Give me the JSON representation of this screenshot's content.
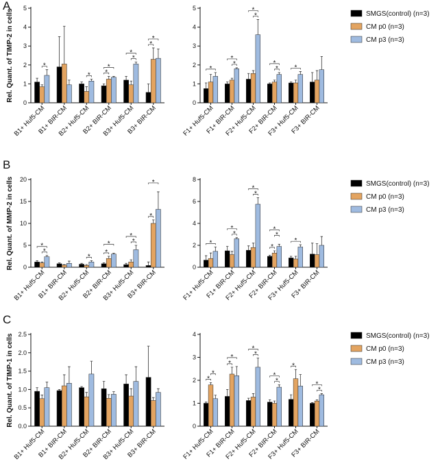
{
  "chart_data": [
    {
      "type": "bar",
      "panel_label": "A",
      "y_label": "Rel. Quant. of TIMP-2 in cells",
      "categories": [
        "B1+ Huf5-CM",
        "B1+ BIR-CM",
        "B2+ Huf5-CM",
        "B2+ BIR-CM",
        "B3+ Huf5-CM",
        "B3+ BIR-CM"
      ],
      "ylim": [
        0,
        5
      ],
      "yticks": [
        0,
        1,
        2,
        3,
        4,
        5
      ],
      "series": [
        {
          "color": "#000000",
          "values": [
            1.1,
            1.9,
            1.0,
            0.9,
            1.2,
            0.55
          ],
          "errors": [
            0.2,
            1.6,
            0.1,
            0.1,
            0.2,
            0.45
          ]
        },
        {
          "color": "#e3a461",
          "values": [
            0.85,
            2.05,
            0.6,
            1.25,
            0.95,
            2.3
          ],
          "errors": [
            0.1,
            2.0,
            0.25,
            0.15,
            0.2,
            0.6
          ]
        },
        {
          "color": "#9fbbe0",
          "values": [
            1.45,
            0.95,
            1.15,
            1.35,
            2.05,
            2.35
          ],
          "errors": [
            0.3,
            0.25,
            0.1,
            0.05,
            0.1,
            0.5
          ]
        }
      ],
      "significance": [
        {
          "label": "*",
          "category": 0,
          "pair": [
            1,
            2
          ]
        },
        {
          "label": "*",
          "category": 2,
          "pair": [
            1,
            2
          ]
        },
        {
          "label": "*",
          "category": 3,
          "pair": [
            0,
            1
          ]
        },
        {
          "label": "*",
          "category": 3,
          "pair": [
            0,
            2
          ]
        },
        {
          "label": "*",
          "category": 4,
          "pair": [
            1,
            2
          ]
        },
        {
          "label": "*",
          "category": 4,
          "pair": [
            0,
            2
          ]
        },
        {
          "label": "*",
          "category": 5,
          "pair": [
            0,
            1
          ]
        },
        {
          "label": "*",
          "category": 5,
          "pair": [
            0,
            2
          ]
        }
      ]
    },
    {
      "type": "bar",
      "categories": [
        "F1+ Huf5-CM",
        "F1+ BIR-CM",
        "F2+ Huf5-CM",
        "F2+ BIR-CM",
        "F3+ Huf5-CM",
        "F3+ BIR-CM"
      ],
      "ylim": [
        0,
        5
      ],
      "yticks": [
        0,
        1,
        2,
        3,
        4,
        5
      ],
      "series": [
        {
          "name": "SMGS(control) (n=3)",
          "color": "#000000",
          "values": [
            0.75,
            1.0,
            1.25,
            1.0,
            1.05,
            1.1
          ],
          "errors": [
            0.3,
            0.1,
            0.3,
            0.05,
            0.05,
            0.5
          ]
        },
        {
          "name": "CM p0 (n=3)",
          "color": "#e3a461",
          "values": [
            1.1,
            1.2,
            1.55,
            1.1,
            1.05,
            1.2
          ],
          "errors": [
            0.4,
            0.1,
            0.15,
            0.1,
            0.15,
            0.5
          ]
        },
        {
          "name": "CM p3 (n=3)",
          "color": "#9fbbe0",
          "values": [
            1.4,
            1.8,
            3.6,
            1.5,
            1.5,
            1.75
          ],
          "errors": [
            0.2,
            0.05,
            0.8,
            0.1,
            0.15,
            0.7
          ]
        }
      ],
      "significance": [
        {
          "label": "*",
          "category": 0,
          "pair": [
            0,
            2
          ]
        },
        {
          "label": "*",
          "category": 1,
          "pair": [
            1,
            2
          ]
        },
        {
          "label": "*",
          "category": 1,
          "pair": [
            0,
            2
          ]
        },
        {
          "label": "*",
          "category": 2,
          "pair": [
            1,
            2
          ]
        },
        {
          "label": "*",
          "category": 2,
          "pair": [
            0,
            2
          ]
        },
        {
          "label": "*",
          "category": 3,
          "pair": [
            1,
            2
          ]
        },
        {
          "label": "*",
          "category": 3,
          "pair": [
            0,
            2
          ]
        },
        {
          "label": "*",
          "category": 4,
          "pair": [
            0,
            2
          ]
        }
      ]
    },
    {
      "type": "bar",
      "panel_label": "B",
      "y_label": "Rel. Quant. of MMP-2 in cells",
      "categories": [
        "B1+ Huf5-CM",
        "B1+ BIR-CM",
        "B2+ Huf5-CM",
        "B2+ BIR-CM",
        "B3+ Huf5-CM",
        "B3+ BIR-CM"
      ],
      "ylim": [
        0,
        20
      ],
      "yticks": [
        0,
        5,
        10,
        15,
        20
      ],
      "series": [
        {
          "color": "#000000",
          "values": [
            1.2,
            0.8,
            0.7,
            0.8,
            0.6,
            0.4
          ],
          "errors": [
            0.3,
            0.2,
            0.2,
            0.2,
            0.3,
            0.8
          ]
        },
        {
          "color": "#e3a461",
          "values": [
            1.0,
            0.5,
            0.4,
            2.0,
            1.2,
            10.0
          ],
          "errors": [
            0.2,
            0.1,
            0.2,
            0.5,
            0.5,
            0.8
          ]
        },
        {
          "color": "#9fbbe0",
          "values": [
            2.4,
            0.9,
            1.2,
            3.0,
            4.0,
            13.2
          ],
          "errors": [
            0.3,
            0.5,
            0.3,
            0.2,
            1.0,
            4.0
          ]
        }
      ],
      "significance": [
        {
          "label": "*",
          "category": 0,
          "pair": [
            1,
            2
          ]
        },
        {
          "label": "*",
          "category": 0,
          "pair": [
            0,
            2
          ]
        },
        {
          "label": "*",
          "category": 2,
          "pair": [
            1,
            2
          ]
        },
        {
          "label": "*",
          "category": 3,
          "pair": [
            0,
            1
          ]
        },
        {
          "label": "*",
          "category": 3,
          "pair": [
            0,
            2
          ]
        },
        {
          "label": "*",
          "category": 4,
          "pair": [
            1,
            2
          ]
        },
        {
          "label": "*",
          "category": 4,
          "pair": [
            0,
            2
          ]
        },
        {
          "label": "*",
          "category": 5,
          "pair": [
            0,
            1
          ]
        },
        {
          "label": "*",
          "category": 5,
          "pair": [
            0,
            2
          ]
        }
      ]
    },
    {
      "type": "bar",
      "categories": [
        "F1+ Huf5-CM",
        "F1+ BIR-CM",
        "F2+ Huf5-CM",
        "F2+ BIR-CM",
        "F3+ Huf5-CM",
        "F3+ BIR-CM"
      ],
      "ylim": [
        0,
        8
      ],
      "yticks": [
        0,
        2,
        4,
        6,
        8
      ],
      "series": [
        {
          "name": "SMGS(control) (n=3)",
          "color": "#000000",
          "values": [
            0.65,
            1.5,
            1.55,
            1.0,
            0.85,
            1.2
          ],
          "errors": [
            0.4,
            0.4,
            0.4,
            0.1,
            0.15,
            1.0
          ]
        },
        {
          "name": "CM p0 (n=3)",
          "color": "#e3a461",
          "values": [
            0.8,
            1.15,
            1.8,
            1.3,
            0.75,
            1.15
          ],
          "errors": [
            0.5,
            0.3,
            0.4,
            0.2,
            0.25,
            1.0
          ]
        },
        {
          "name": "CM p3 (n=3)",
          "color": "#9fbbe0",
          "values": [
            1.45,
            2.6,
            5.75,
            1.9,
            1.85,
            2.0
          ],
          "errors": [
            0.4,
            0.1,
            0.6,
            0.2,
            0.2,
            0.8
          ]
        }
      ],
      "significance": [
        {
          "label": "*",
          "category": 0,
          "pair": [
            0,
            2
          ]
        },
        {
          "label": "*",
          "category": 1,
          "pair": [
            1,
            2
          ]
        },
        {
          "label": "*",
          "category": 1,
          "pair": [
            0,
            2
          ]
        },
        {
          "label": "*",
          "category": 2,
          "pair": [
            1,
            2
          ]
        },
        {
          "label": "*",
          "category": 2,
          "pair": [
            0,
            2
          ]
        },
        {
          "label": "*",
          "category": 3,
          "pair": [
            0,
            1
          ]
        },
        {
          "label": "*",
          "category": 3,
          "pair": [
            1,
            2
          ]
        },
        {
          "label": "*",
          "category": 3,
          "pair": [
            0,
            2
          ]
        },
        {
          "label": "*",
          "category": 4,
          "pair": [
            0,
            2
          ]
        }
      ]
    },
    {
      "type": "bar",
      "panel_label": "C",
      "y_label": "Rel. Quant. of TIMP-1 in cells",
      "categories": [
        "B1+ Huf5-CM",
        "B1+ BIR-CM",
        "B2+ Huf5-CM",
        "B2+ BIR-CM",
        "B3+ Huf5-CM",
        "B3+ BIR-CM"
      ],
      "ylim": [
        0,
        2.5
      ],
      "yticks": [
        {
          "value": 0,
          "label": "0.0"
        },
        0.5,
        {
          "value": 1,
          "label": "1.0"
        },
        1.5,
        {
          "value": 2,
          "label": "2.0"
        },
        2.5
      ],
      "series": [
        {
          "color": "#000000",
          "values": [
            0.95,
            0.97,
            1.05,
            1.02,
            1.15,
            1.33
          ],
          "errors": [
            0.1,
            0.03,
            0.03,
            0.2,
            0.25,
            0.85
          ]
        },
        {
          "color": "#e3a461",
          "values": [
            0.75,
            1.1,
            0.8,
            0.76,
            0.82,
            0.7
          ],
          "errors": [
            0.1,
            0.3,
            0.12,
            0.1,
            0.2,
            0.08
          ]
        },
        {
          "color": "#9fbbe0",
          "values": [
            1.05,
            1.17,
            1.42,
            0.87,
            1.22,
            0.92
          ],
          "errors": [
            0.15,
            0.45,
            0.35,
            0.07,
            0.4,
            0.1
          ]
        }
      ],
      "significance": []
    },
    {
      "type": "bar",
      "categories": [
        "F1+ Huf5-CM",
        "F1+ BIR-CM",
        "F2+ Huf5-CM",
        "F2+ BIR-CM",
        "F3+ Huf5-CM",
        "F3+ BIR-CM"
      ],
      "ylim": [
        0,
        4
      ],
      "yticks": [
        0,
        1,
        2,
        3,
        4
      ],
      "series": [
        {
          "name": "SMGS(control) (n=3)",
          "color": "#000000",
          "values": [
            1.0,
            1.3,
            1.12,
            1.05,
            1.17,
            1.0
          ],
          "errors": [
            0.05,
            0.3,
            0.1,
            0.1,
            0.2,
            0.03
          ]
        },
        {
          "name": "CM p0 (n=3)",
          "color": "#e3a461",
          "values": [
            1.8,
            2.27,
            1.27,
            1.0,
            2.07,
            1.1
          ],
          "errors": [
            0.1,
            0.3,
            0.15,
            0.1,
            0.4,
            0.05
          ]
        },
        {
          "name": "CM p3 (n=3)",
          "color": "#9fbbe0",
          "values": [
            1.2,
            2.2,
            2.57,
            1.7,
            1.75,
            1.37
          ],
          "errors": [
            0.15,
            0.4,
            0.4,
            0.1,
            0.5,
            0.05
          ]
        }
      ],
      "significance": [
        {
          "label": "*",
          "category": 0,
          "pair": [
            0,
            1
          ]
        },
        {
          "label": "*",
          "category": 0,
          "pair": [
            1,
            2
          ]
        },
        {
          "label": "*",
          "category": 1,
          "pair": [
            0,
            1
          ]
        },
        {
          "label": "*",
          "category": 1,
          "pair": [
            0,
            2
          ]
        },
        {
          "label": "*",
          "category": 2,
          "pair": [
            1,
            2
          ]
        },
        {
          "label": "*",
          "category": 2,
          "pair": [
            0,
            2
          ]
        },
        {
          "label": "*",
          "category": 3,
          "pair": [
            1,
            2
          ]
        },
        {
          "label": "*",
          "category": 3,
          "pair": [
            0,
            2
          ]
        },
        {
          "label": "*",
          "category": 4,
          "pair": [
            0,
            1
          ]
        },
        {
          "label": "*",
          "category": 5,
          "pair": [
            1,
            2
          ]
        },
        {
          "label": "*",
          "category": 5,
          "pair": [
            0,
            2
          ]
        }
      ]
    }
  ]
}
